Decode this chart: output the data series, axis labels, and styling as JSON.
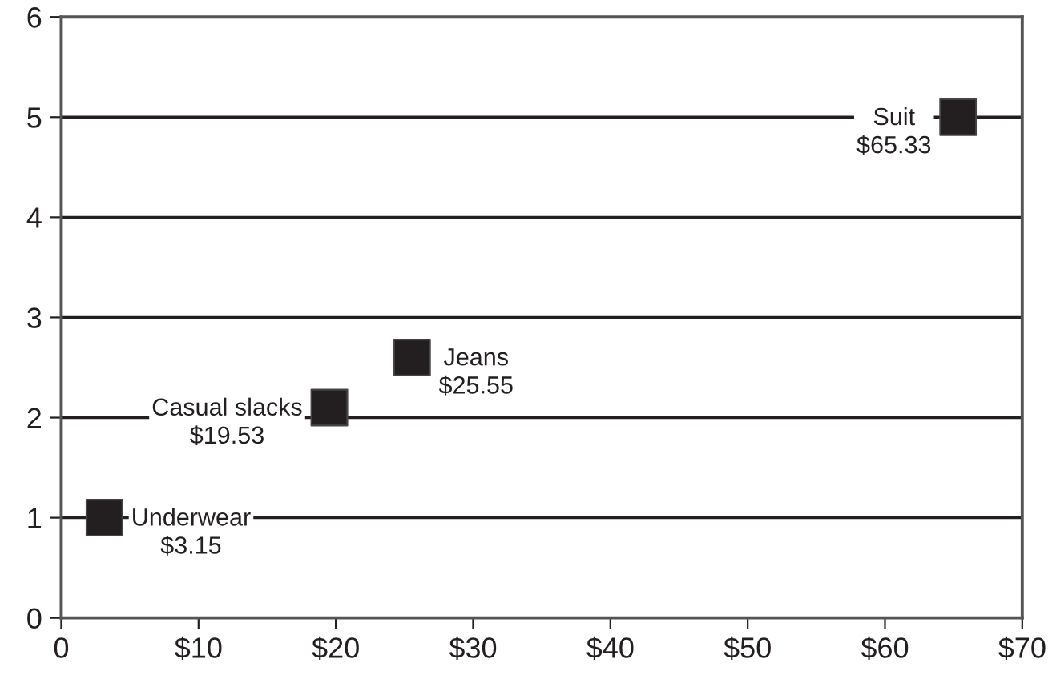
{
  "chart_data": {
    "type": "scatter",
    "x": [
      3.15,
      19.53,
      25.55,
      65.33
    ],
    "values": [
      1,
      2.1,
      2.6,
      5
    ],
    "color": "#231f20",
    "marker": "square",
    "xlim": [
      0,
      70
    ],
    "xticks": [
      0,
      {
        "value": 10,
        "label": "$10"
      },
      {
        "value": 20,
        "label": "$20"
      },
      {
        "value": 30,
        "label": "$30"
      },
      {
        "value": 40,
        "label": "$40"
      },
      {
        "value": 50,
        "label": "$50"
      },
      {
        "value": 60,
        "label": "$60"
      },
      {
        "value": 70,
        "label": "$70"
      }
    ],
    "ylim": [
      0,
      6
    ],
    "yticks": [
      0,
      1,
      2,
      3,
      4,
      5,
      6
    ],
    "grid": "y",
    "annotations": [
      {
        "text": "Underwear\n$3.15",
        "x": 3.15,
        "y": 1
      },
      {
        "text": "Casual slacks\n$19.53",
        "x": 19.53,
        "y": 2.1
      },
      {
        "text": "Jeans\n$25.55",
        "x": 25.55,
        "y": 2.6
      },
      {
        "text": "Suit\n$65.33",
        "x": 65.33,
        "y": 5
      }
    ]
  }
}
